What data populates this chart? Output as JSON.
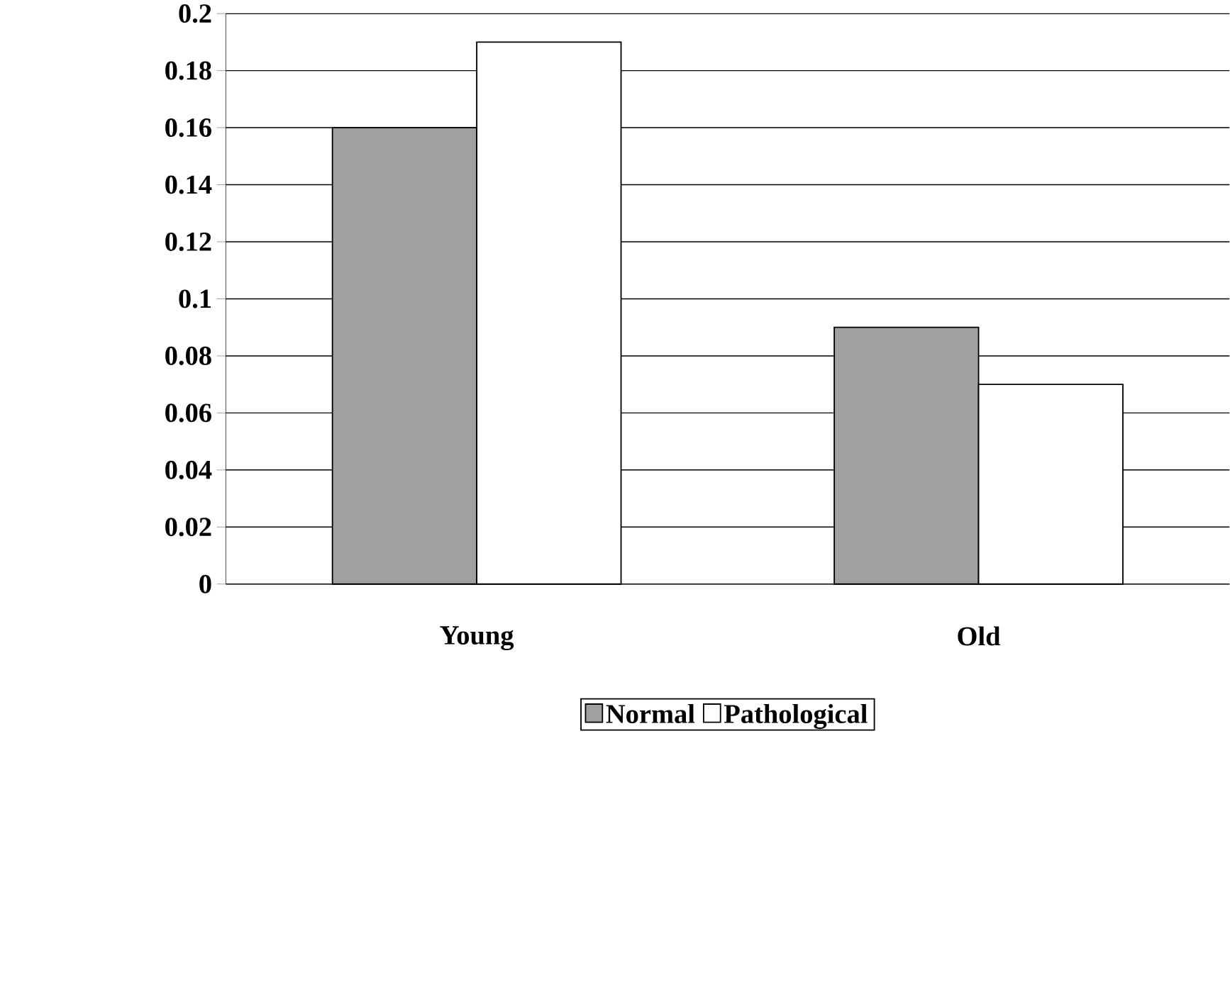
{
  "chart_data": {
    "type": "bar",
    "categories": [
      "Young",
      "Old"
    ],
    "series": [
      {
        "name": "Normal",
        "color": "#a0a0a0",
        "values": [
          0.16,
          0.09
        ]
      },
      {
        "name": "Pathological",
        "color": "#ffffff",
        "values": [
          0.19,
          0.07
        ]
      }
    ],
    "ylim": [
      0,
      0.2
    ],
    "yticks": [
      0,
      0.02,
      0.04,
      0.06,
      0.08,
      0.1,
      0.12,
      0.14,
      0.16,
      0.18,
      0.2
    ],
    "grid": "y",
    "legend": "bottom"
  }
}
